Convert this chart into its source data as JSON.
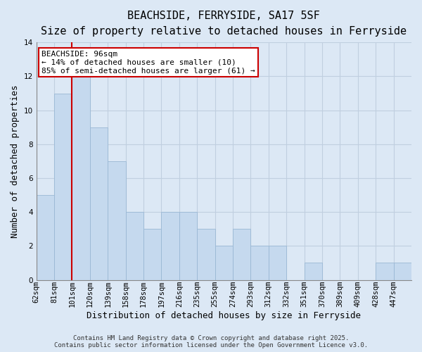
{
  "title": "BEACHSIDE, FERRYSIDE, SA17 5SF",
  "subtitle": "Size of property relative to detached houses in Ferryside",
  "xlabel": "Distribution of detached houses by size in Ferryside",
  "ylabel": "Number of detached properties",
  "bar_labels": [
    "62sqm",
    "81sqm",
    "101sqm",
    "120sqm",
    "139sqm",
    "158sqm",
    "178sqm",
    "197sqm",
    "216sqm",
    "235sqm",
    "255sqm",
    "274sqm",
    "293sqm",
    "312sqm",
    "332sqm",
    "351sqm",
    "370sqm",
    "389sqm",
    "409sqm",
    "428sqm",
    "447sqm"
  ],
  "bar_values": [
    5,
    11,
    12,
    9,
    7,
    4,
    3,
    4,
    4,
    3,
    2,
    3,
    2,
    2,
    0,
    1,
    0,
    0,
    0,
    1,
    1
  ],
  "bar_color": "#c5d9ee",
  "bar_edge_color": "#9ab8d4",
  "ylim": [
    0,
    14
  ],
  "yticks": [
    0,
    2,
    4,
    6,
    8,
    10,
    12,
    14
  ],
  "vline_color": "#cc0000",
  "vline_pos": 1.0,
  "annotation_title": "BEACHSIDE: 96sqm",
  "annotation_line1": "← 14% of detached houses are smaller (10)",
  "annotation_line2": "85% of semi-detached houses are larger (61) →",
  "annotation_box_color": "#ffffff",
  "annotation_box_edge": "#cc0000",
  "footer1": "Contains HM Land Registry data © Crown copyright and database right 2025.",
  "footer2": "Contains public sector information licensed under the Open Government Licence v3.0.",
  "background_color": "#dce8f5",
  "grid_color": "#c0cfe0",
  "title_fontsize": 11,
  "subtitle_fontsize": 9,
  "axis_label_fontsize": 9,
  "tick_fontsize": 7.5,
  "footer_fontsize": 6.5,
  "annotation_fontsize": 8
}
